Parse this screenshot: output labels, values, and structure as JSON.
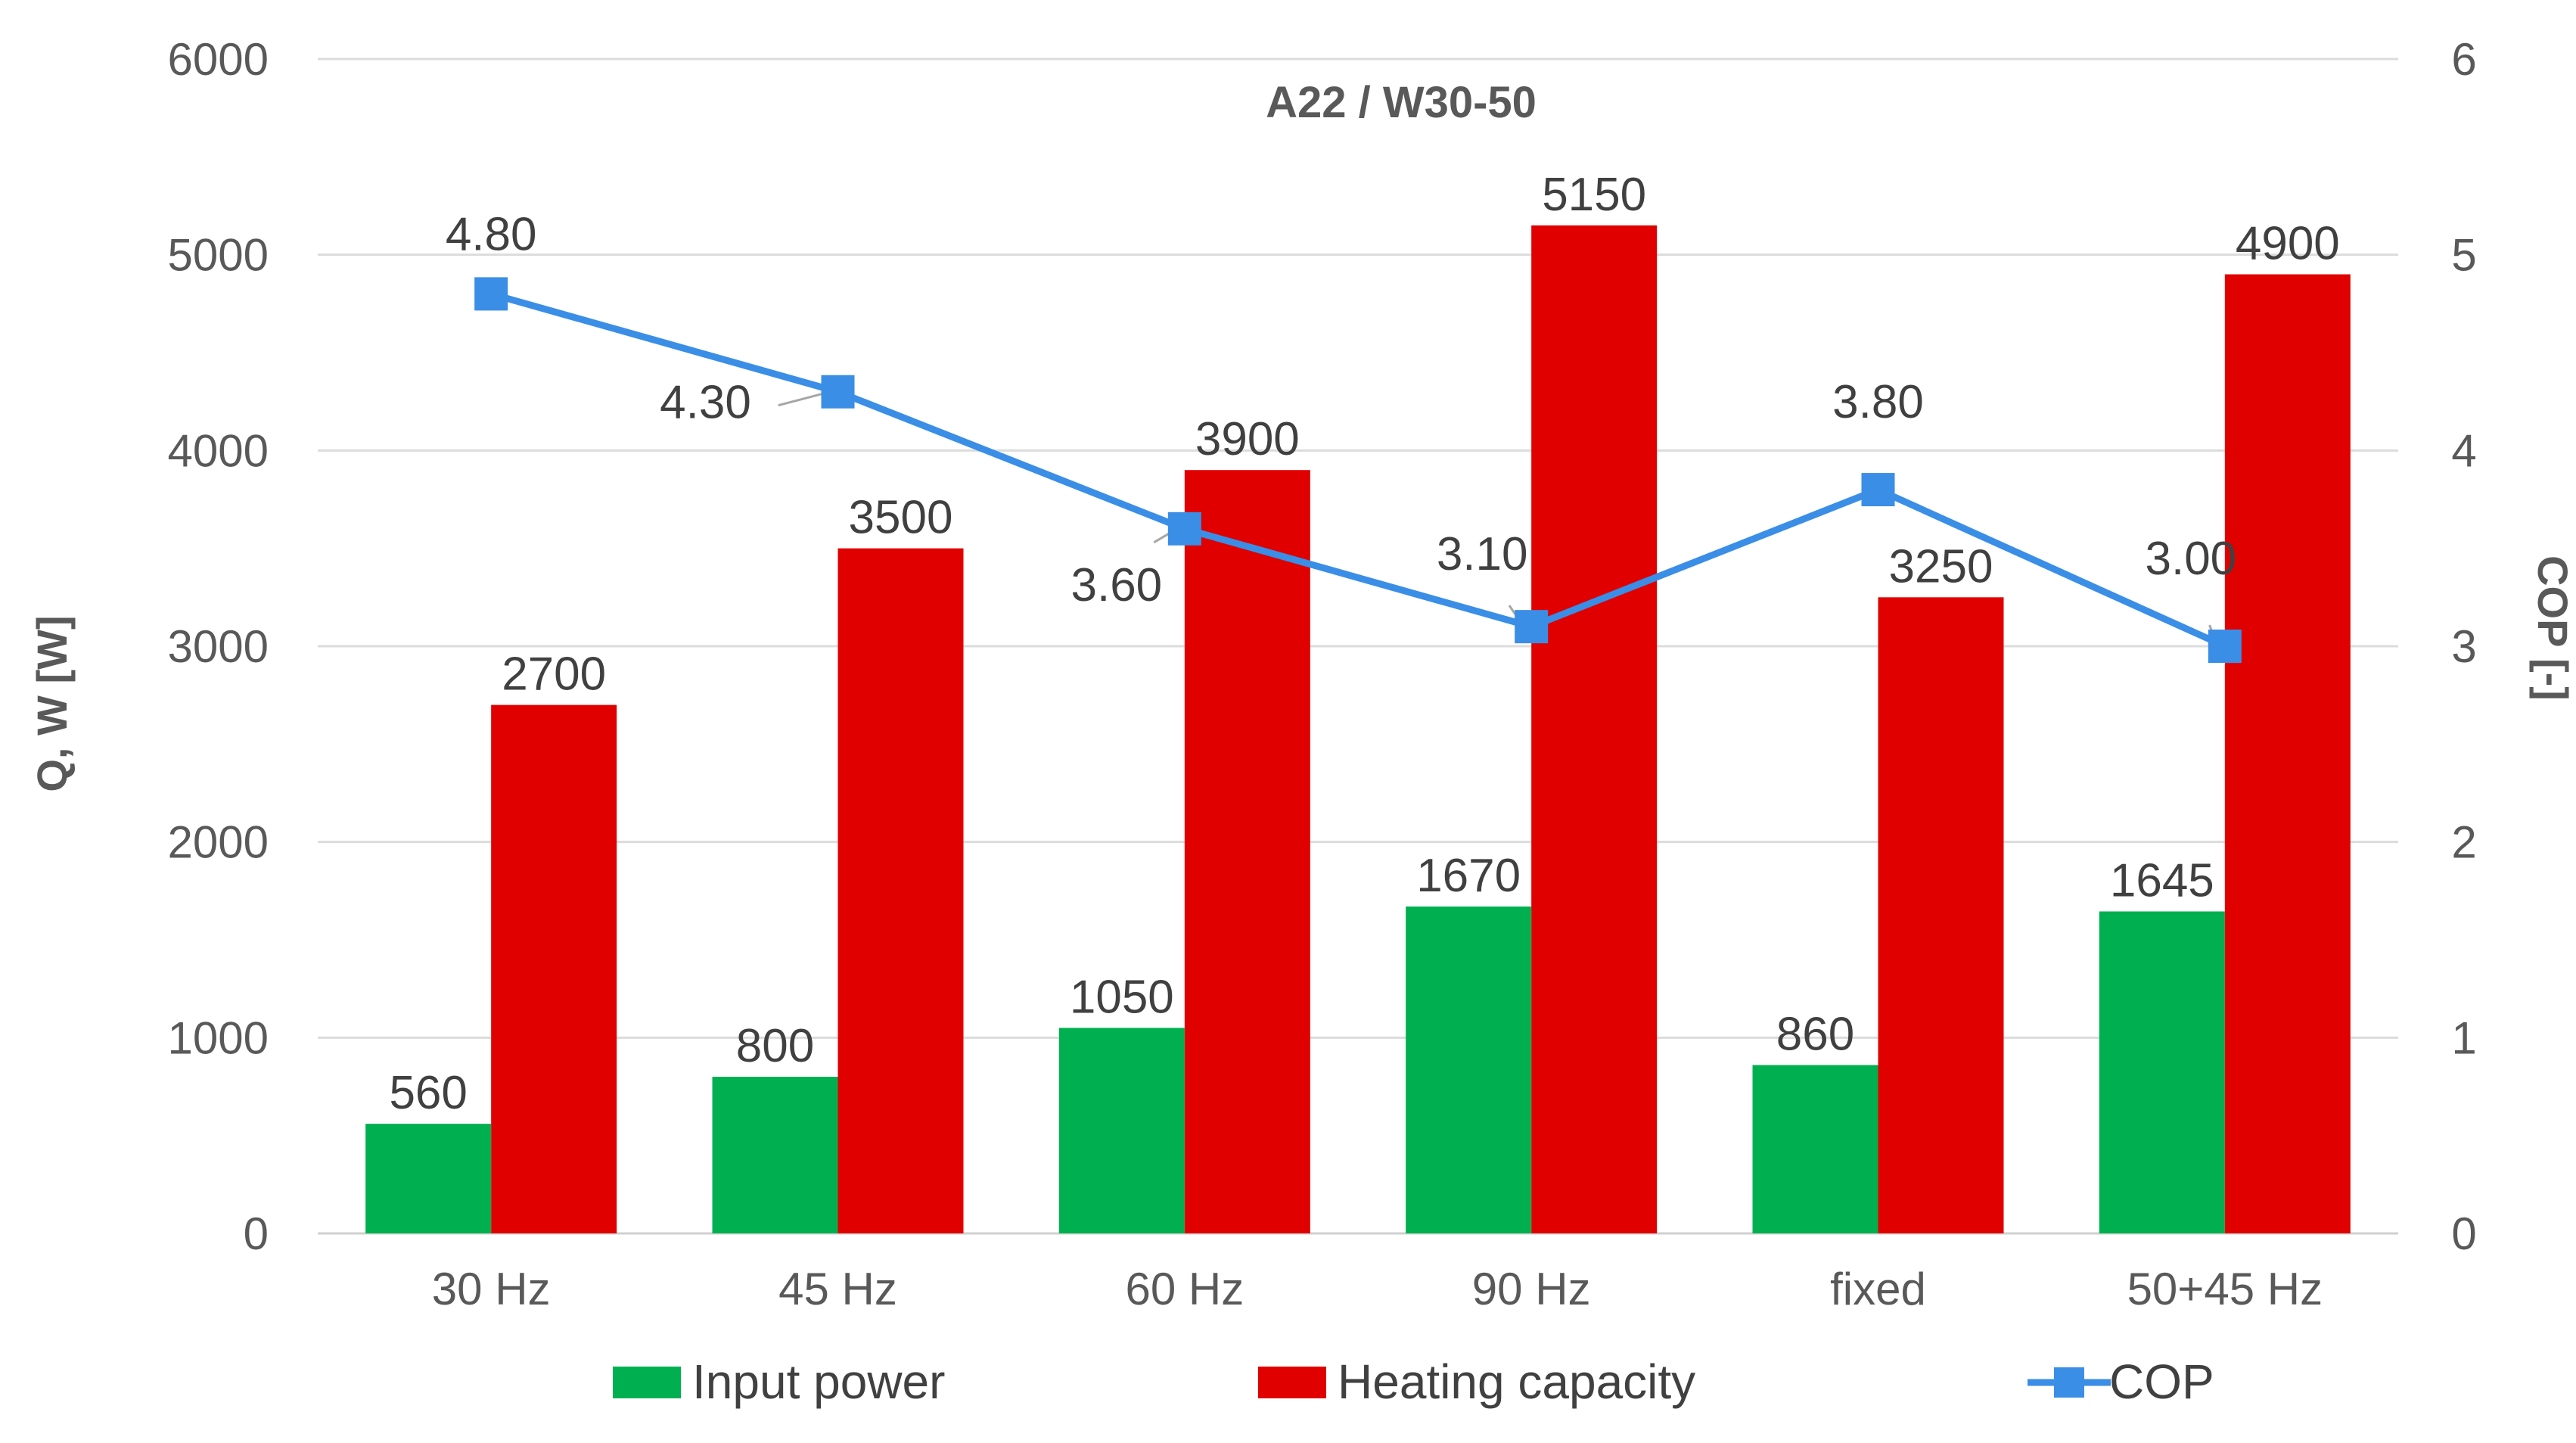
{
  "chart_data": {
    "type": "bar",
    "title": "A22 / W30-50",
    "categories": [
      "30 Hz",
      "45 Hz",
      "60 Hz",
      "90 Hz",
      "fixed",
      "50+45 Hz"
    ],
    "series": [
      {
        "name": "Input power",
        "kind": "bar",
        "axis": "left",
        "color": "#00b050",
        "values": [
          560,
          800,
          1050,
          1670,
          860,
          1645
        ],
        "labels": [
          "560",
          "800",
          "1050",
          "1670",
          "860",
          "1645"
        ]
      },
      {
        "name": "Heating capacity",
        "kind": "bar",
        "axis": "left",
        "color": "#e00000",
        "values": [
          2700,
          3500,
          3900,
          5150,
          3250,
          4900
        ],
        "labels": [
          "2700",
          "3500",
          "3900",
          "5150",
          "3250",
          "4900"
        ]
      },
      {
        "name": "COP",
        "kind": "line",
        "axis": "right",
        "color": "#3a8ee6",
        "values": [
          4.8,
          4.3,
          3.6,
          3.1,
          3.8,
          3.0
        ],
        "labels": [
          "4.80",
          "4.30",
          "3.60",
          "3.10",
          "3.80",
          "3.00"
        ]
      }
    ],
    "ylabel": "Q, W [W]",
    "y2label": "COP [-]",
    "ylim": [
      0,
      6000
    ],
    "y2lim": [
      0,
      6
    ],
    "yticks": [
      "0",
      "1000",
      "2000",
      "3000",
      "4000",
      "5000",
      "6000"
    ],
    "y2ticks": [
      "0",
      "1",
      "2",
      "3",
      "4",
      "5",
      "6"
    ],
    "grid": true,
    "legend": "bottom"
  }
}
